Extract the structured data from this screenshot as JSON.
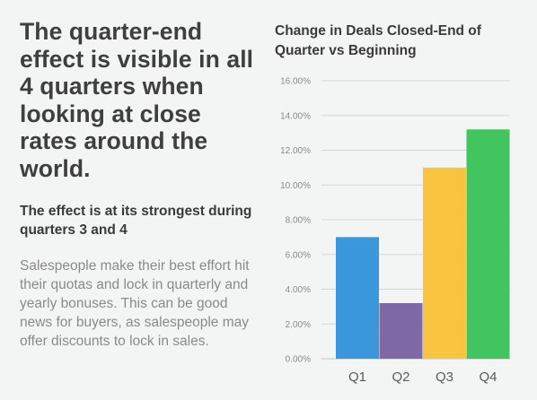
{
  "left_panel": {
    "headline": "The quarter-end effect is visible in all 4 quarters when looking at close rates around the world.",
    "subhead": "The effect is at its strongest during quarters 3 and 4",
    "body": "Salespeople make their best effort hit their quotas and lock in quarterly and yearly bonuses. This can be good news for buyers, as salespeople may offer discounts to lock in sales."
  },
  "chart_data": {
    "type": "bar",
    "title": "Change in Deals Closed-End of Quarter vs Beginning",
    "categories": [
      "Q1",
      "Q2",
      "Q3",
      "Q4"
    ],
    "values": [
      7.0,
      3.2,
      11.0,
      13.2
    ],
    "colors": [
      "#3a97dc",
      "#7f68a6",
      "#f9c440",
      "#42c55e"
    ],
    "ylim": [
      0,
      16
    ],
    "yticks": [
      0,
      2,
      4,
      6,
      8,
      10,
      12,
      14,
      16
    ],
    "ytick_labels": [
      "0.00%",
      "2.00%",
      "4.00%",
      "6.00%",
      "8.00%",
      "10.00%",
      "12.00%",
      "14.00%",
      "16.00%"
    ],
    "grid": true,
    "xlabel": "",
    "ylabel": ""
  }
}
